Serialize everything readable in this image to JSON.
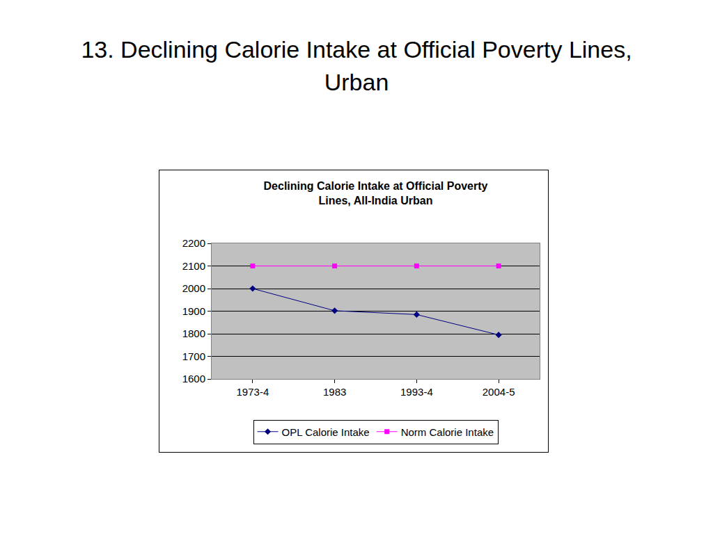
{
  "heading": "13. Declining Calorie Intake at Official Poverty Lines, Urban",
  "chart_data": {
    "type": "line",
    "title": "Declining Calorie Intake at Official Poverty Lines, All-India Urban",
    "categories": [
      "1973-4",
      "1983",
      "1993-4",
      "2004-5"
    ],
    "series": [
      {
        "name": "OPL Calorie Intake",
        "color": "#000080",
        "marker": "diamond",
        "values": [
          2000,
          1902,
          1885,
          1795
        ]
      },
      {
        "name": "Norm Calorie Intake",
        "color": "#ff00ff",
        "marker": "square",
        "values": [
          2100,
          2100,
          2100,
          2100
        ]
      }
    ],
    "ylim": [
      1600,
      2200
    ],
    "yticks": [
      1600,
      1700,
      1800,
      1900,
      2000,
      2100,
      2200
    ],
    "grid": true,
    "legend": "bottom"
  }
}
